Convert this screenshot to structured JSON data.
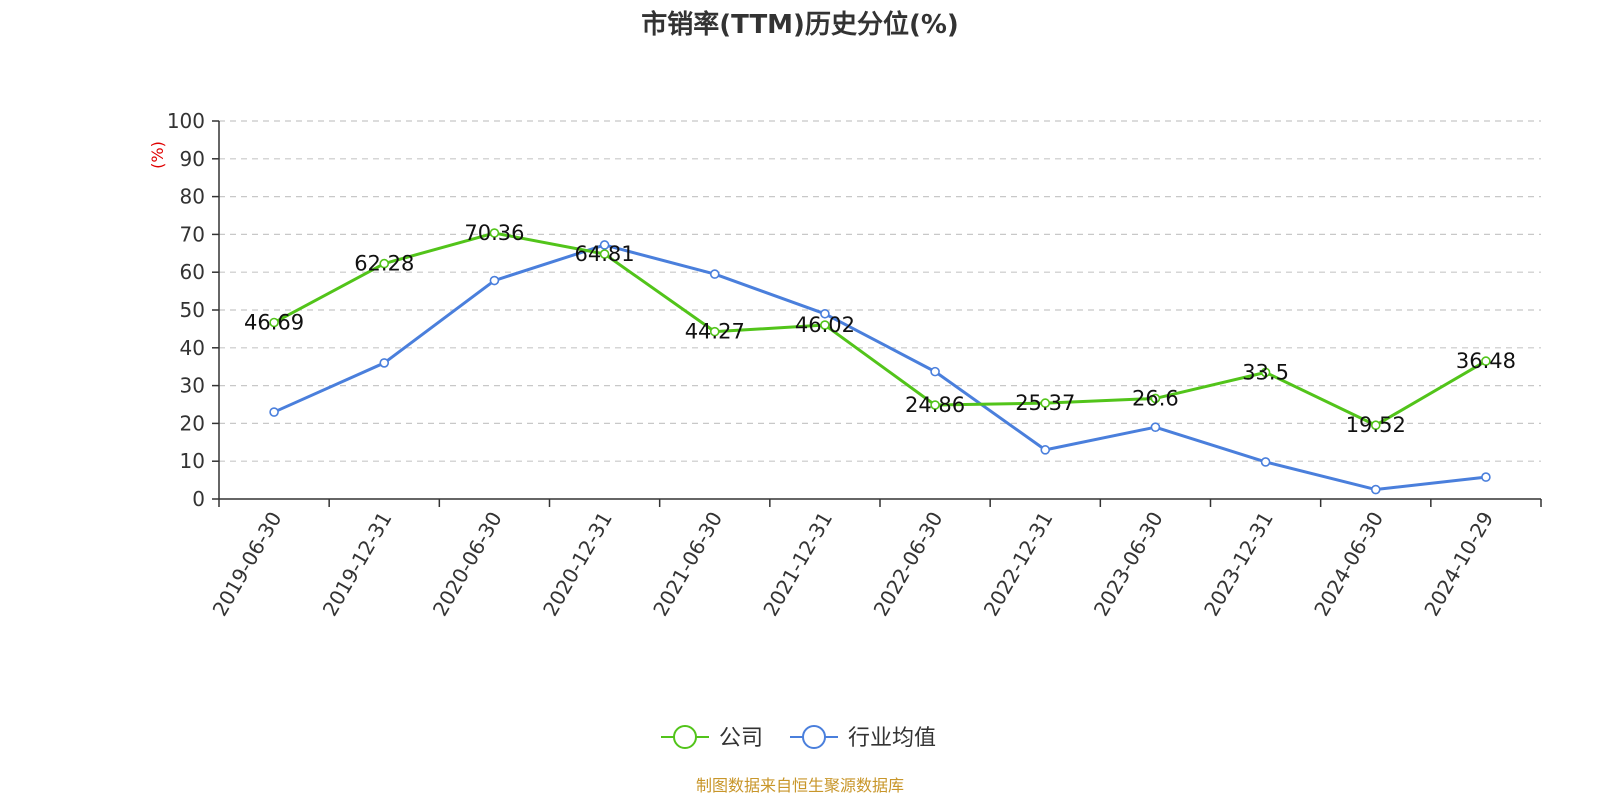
{
  "chart_data": {
    "type": "line",
    "title": "市销率(TTM)历史分位(%)",
    "ylabel": "(%)",
    "ylim": [
      0,
      100
    ],
    "yticks": [
      0,
      10,
      20,
      30,
      40,
      50,
      60,
      70,
      80,
      90,
      100
    ],
    "grid": true,
    "legend_position": "bottom-center",
    "categories": [
      "2019-06-30",
      "2019-12-31",
      "2020-06-30",
      "2020-12-31",
      "2021-06-30",
      "2021-12-31",
      "2022-06-30",
      "2022-12-31",
      "2023-06-30",
      "2023-12-31",
      "2024-06-30",
      "2024-10-29"
    ],
    "series": [
      {
        "name": "公司",
        "color": "#52c41a",
        "values": [
          46.69,
          62.28,
          70.36,
          64.81,
          44.27,
          46.02,
          24.86,
          25.37,
          26.6,
          33.5,
          19.52,
          36.48
        ],
        "labels": [
          "46.69",
          "62.28",
          "70.36",
          "64.81",
          "44.27",
          "46.02",
          "24.86",
          "25.37",
          "26.6",
          "33.5",
          "19.52",
          "36.48"
        ]
      },
      {
        "name": "行业均值",
        "color": "#4a7fdc",
        "values": [
          23.0,
          36.0,
          57.8,
          67.2,
          59.5,
          49.0,
          33.7,
          13.0,
          19.0,
          9.8,
          2.5,
          5.8
        ]
      }
    ],
    "source": "制图数据来自恒生聚源数据库",
    "label_color": "#e00000",
    "source_color": "#c8962a"
  }
}
